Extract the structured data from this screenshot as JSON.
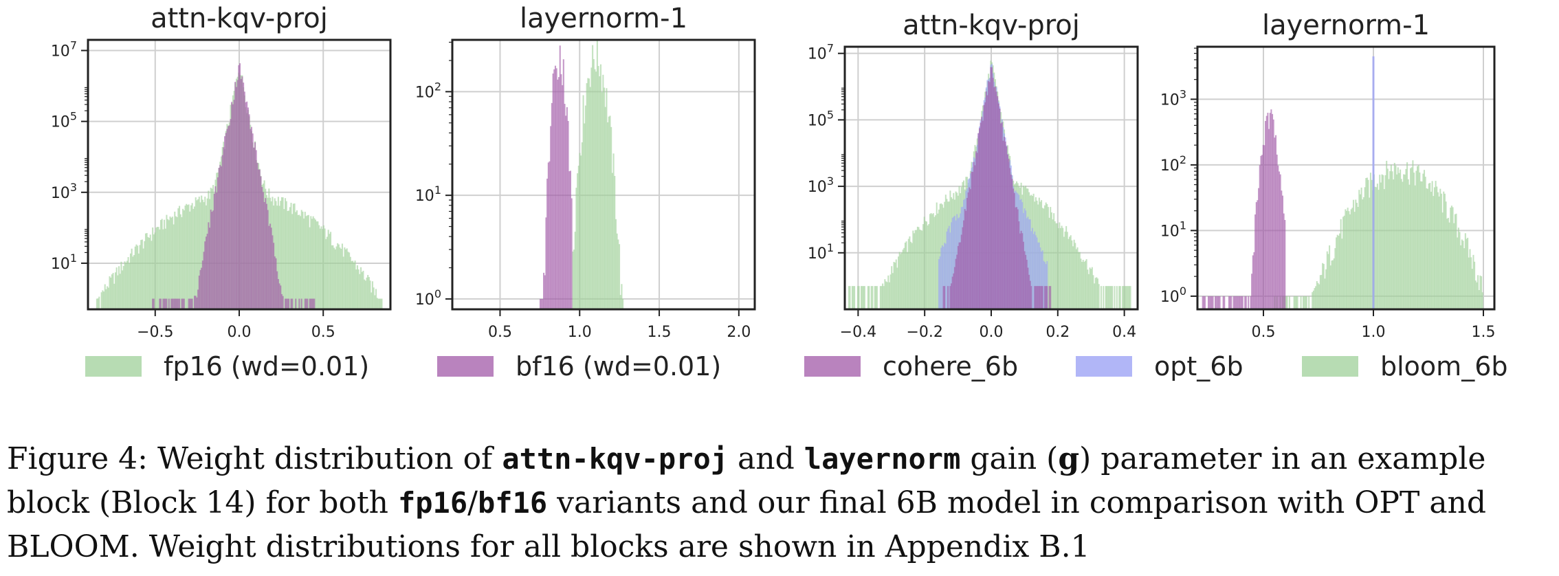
{
  "chart_data": [
    {
      "type": "histogram",
      "title": "attn-kqv-proj",
      "yscale": "log",
      "xlim": [
        -0.9,
        0.9
      ],
      "xticks": [
        -0.5,
        0.0,
        0.5
      ],
      "xtick_labels": [
        "−0.5",
        "0.0",
        "0.5"
      ],
      "ytick_labels": [
        "10^1",
        "10^3",
        "10^5",
        "10^7"
      ],
      "grid": true,
      "series": [
        {
          "name": "fp16 (wd=0.01)",
          "color": "#9fd09a",
          "shape": "heavy",
          "center": 0.0,
          "peak": 4000000,
          "core_width": 0.04,
          "tail_width": 0.32,
          "x_min": -0.85,
          "x_max": 0.85
        },
        {
          "name": "bf16 (wd=0.01)",
          "color": "#a25aa8",
          "shape": "laplace",
          "center": 0.0,
          "peak": 4000000,
          "core_width": 0.04,
          "x_min": -0.52,
          "x_max": 0.45
        }
      ]
    },
    {
      "type": "histogram",
      "title": "layernorm-1",
      "yscale": "log",
      "xlim": [
        0.2,
        2.1
      ],
      "xticks": [
        0.5,
        1.0,
        1.5,
        2.0
      ],
      "xtick_labels": [
        "0.5",
        "1.0",
        "1.5",
        "2.0"
      ],
      "ytick_labels": [
        "10^0",
        "10^1",
        "10^2"
      ],
      "grid": true,
      "series": [
        {
          "name": "fp16 (wd=0.01)",
          "color": "#9fd09a",
          "shape": "gauss",
          "center": 1.1,
          "peak": 220,
          "sigma": 0.05,
          "x_min": 0.95,
          "x_max": 1.28
        },
        {
          "name": "bf16 (wd=0.01)",
          "color": "#a25aa8",
          "shape": "gauss",
          "center": 0.87,
          "peak": 240,
          "sigma": 0.03,
          "x_min": 0.75,
          "x_max": 0.95
        }
      ]
    },
    {
      "type": "histogram",
      "title": "attn-kqv-proj",
      "yscale": "log",
      "xlim": [
        -0.44,
        0.44
      ],
      "xticks": [
        -0.4,
        -0.2,
        0.0,
        0.2,
        0.4
      ],
      "xtick_labels": [
        "−0.4",
        "−0.2",
        "0.0",
        "0.2",
        "0.4"
      ],
      "ytick_labels": [
        "10^1",
        "10^3",
        "10^5",
        "10^7"
      ],
      "grid": true,
      "series": [
        {
          "name": "bloom_6b",
          "color": "#9fd09a",
          "shape": "heavy",
          "center": 0.0,
          "peak": 6000000,
          "core_width": 0.018,
          "tail_width": 0.12,
          "x_min": -0.43,
          "x_max": 0.42
        },
        {
          "name": "opt_6b",
          "color": "#9da4f5",
          "shape": "heavy",
          "center": 0.0,
          "peak": 5000000,
          "core_width": 0.018,
          "tail_width": 0.07,
          "x_min": -0.16,
          "x_max": 0.17
        },
        {
          "name": "cohere_6b",
          "color": "#a25aa8",
          "shape": "laplace",
          "center": 0.0,
          "peak": 4000000,
          "core_width": 0.018,
          "x_min": -0.15,
          "x_max": 0.18
        }
      ]
    },
    {
      "type": "histogram",
      "title": "layernorm-1",
      "yscale": "log",
      "xlim": [
        0.2,
        1.55
      ],
      "xticks": [
        0.5,
        1.0,
        1.5
      ],
      "xtick_labels": [
        "0.5",
        "1.0",
        "1.5"
      ],
      "ytick_labels": [
        "10^0",
        "10^1",
        "10^2",
        "10^3"
      ],
      "grid": true,
      "series": [
        {
          "name": "bloom_6b",
          "color": "#9fd09a",
          "shape": "gauss",
          "center": 1.12,
          "peak": 90,
          "sigma": 0.13,
          "x_min": 0.55,
          "x_max": 1.5
        },
        {
          "name": "cohere_6b",
          "color": "#a25aa8",
          "shape": "gauss",
          "center": 0.53,
          "peak": 500,
          "sigma": 0.025,
          "x_min": 0.22,
          "x_max": 0.6
        },
        {
          "name": "opt_6b",
          "color": "#9da4f5",
          "shape": "spike",
          "center": 1.0,
          "peak": 4500
        }
      ]
    }
  ],
  "legends": [
    {
      "items": [
        {
          "label": "fp16 (wd=0.01)",
          "color": "#9fd09a"
        },
        {
          "label": "bf16 (wd=0.01)",
          "color": "#a25aa8"
        }
      ]
    },
    {
      "items": [
        {
          "label": "cohere_6b",
          "color": "#a25aa8"
        },
        {
          "label": "opt_6b",
          "color": "#9da4f5"
        },
        {
          "label": "bloom_6b",
          "color": "#9fd09a"
        }
      ]
    }
  ],
  "caption": {
    "p1": "Figure 4: Weight distribution of ",
    "c1": "attn-kqv-proj",
    "p2": " and ",
    "c2": "layernorm",
    "p3": " gain (",
    "c3": "g",
    "p4": ") parameter in an example block (Block 14) for both ",
    "c4": "fp16",
    "p5": "/",
    "c5": "bf16",
    "p6": " variants and our final 6B model in comparison with OPT and BLOOM. Weight distributions for all blocks are shown in Appendix B.1"
  }
}
